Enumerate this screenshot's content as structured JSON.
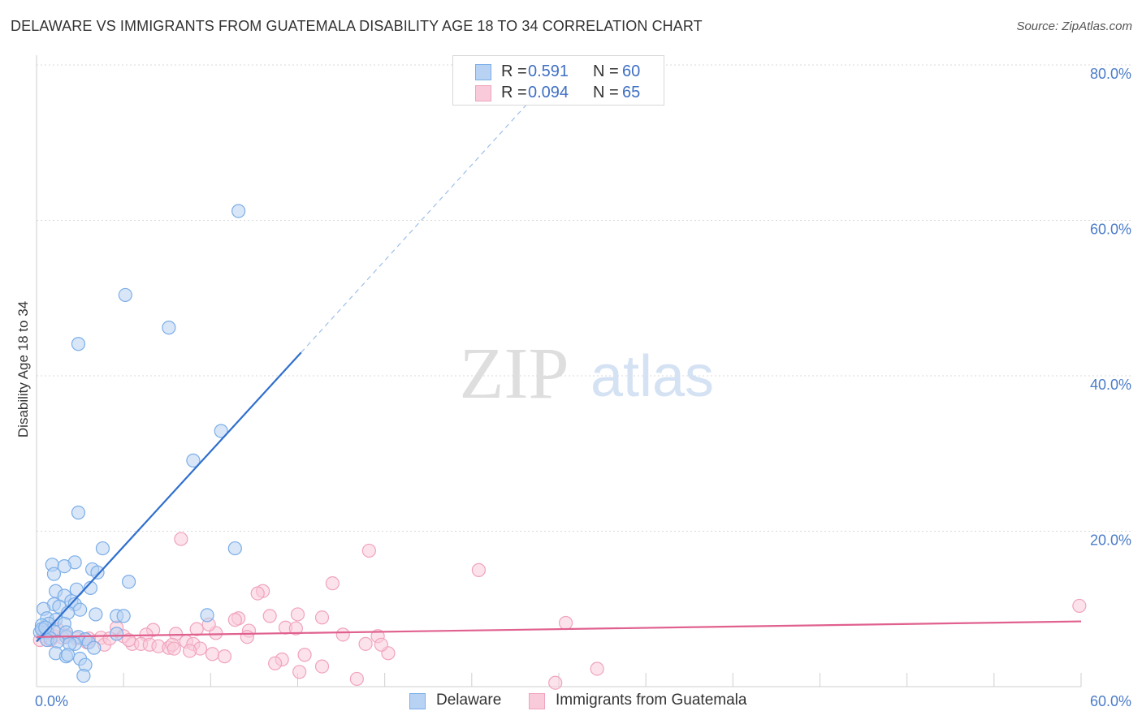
{
  "header": {
    "title": "DELAWARE VS IMMIGRANTS FROM GUATEMALA DISABILITY AGE 18 TO 34 CORRELATION CHART",
    "source": "Source: ZipAtlas.com"
  },
  "watermark": {
    "zip": "ZIP",
    "atlas": "atlas"
  },
  "legend_top": [
    {
      "r_label": "R =",
      "r_value": "0.591",
      "n_label": "N =",
      "n_value": "60"
    },
    {
      "r_label": "R =",
      "r_value": "0.094",
      "n_label": "N =",
      "n_value": "65"
    }
  ],
  "legend_bottom": [
    "Delaware",
    "Immigrants from Guatemala"
  ],
  "chart_data": {
    "type": "scatter",
    "title": "DELAWARE VS IMMIGRANTS FROM GUATEMALA DISABILITY AGE 18 TO 34 CORRELATION CHART",
    "xlabel": "",
    "ylabel": "Disability Age 18 to 34",
    "xlim": [
      0,
      60
    ],
    "ylim": [
      0,
      80
    ],
    "x_tick_labels": [
      {
        "value": 0,
        "label": "0.0%"
      },
      {
        "value": 60,
        "label": "60.0%"
      }
    ],
    "y_tick_labels": [
      {
        "value": 80,
        "label": "80.0%"
      },
      {
        "value": 60,
        "label": "60.0%"
      },
      {
        "value": 40,
        "label": "40.0%"
      },
      {
        "value": 20,
        "label": "20.0%"
      }
    ],
    "grid": true,
    "legend_position": "bottom",
    "series": [
      {
        "name": "Delaware",
        "color": "#7baee8",
        "fill": "#b8d2f3",
        "line_color": "#2f6fce",
        "R": 0.591,
        "N": 60,
        "trendline": {
          "x0": 0,
          "y0": 5.8,
          "x1": 15.2,
          "y1": 43.0,
          "dashed_to_x": 29.0,
          "dashed_to_y": 77.0
        },
        "points": [
          [
            11.6,
            61.2
          ],
          [
            5.1,
            50.4
          ],
          [
            7.6,
            46.2
          ],
          [
            2.4,
            44.1
          ],
          [
            10.6,
            32.9
          ],
          [
            9.0,
            29.1
          ],
          [
            2.4,
            22.4
          ],
          [
            3.8,
            17.8
          ],
          [
            11.4,
            17.8
          ],
          [
            0.9,
            15.7
          ],
          [
            2.2,
            16.0
          ],
          [
            1.6,
            15.5
          ],
          [
            3.2,
            15.1
          ],
          [
            3.5,
            14.7
          ],
          [
            1.0,
            14.5
          ],
          [
            5.3,
            13.5
          ],
          [
            3.1,
            12.7
          ],
          [
            2.3,
            12.5
          ],
          [
            1.1,
            12.3
          ],
          [
            1.6,
            11.7
          ],
          [
            2.0,
            11.0
          ],
          [
            1.0,
            10.6
          ],
          [
            2.2,
            10.6
          ],
          [
            0.4,
            10.0
          ],
          [
            2.5,
            9.9
          ],
          [
            1.3,
            10.3
          ],
          [
            1.8,
            9.5
          ],
          [
            3.4,
            9.3
          ],
          [
            4.6,
            9.1
          ],
          [
            5.0,
            9.1
          ],
          [
            9.8,
            9.2
          ],
          [
            0.6,
            8.8
          ],
          [
            1.1,
            8.6
          ],
          [
            0.7,
            8.1
          ],
          [
            1.6,
            8.1
          ],
          [
            0.3,
            7.9
          ],
          [
            0.4,
            7.3
          ],
          [
            0.2,
            7.0
          ],
          [
            0.6,
            7.0
          ],
          [
            1.0,
            7.1
          ],
          [
            1.7,
            6.4
          ],
          [
            1.7,
            7.0
          ],
          [
            2.4,
            6.4
          ],
          [
            0.8,
            6.2
          ],
          [
            2.8,
            6.1
          ],
          [
            0.6,
            6.0
          ],
          [
            1.2,
            5.8
          ],
          [
            3.0,
            5.7
          ],
          [
            2.2,
            5.5
          ],
          [
            3.3,
            5.0
          ],
          [
            1.9,
            5.5
          ],
          [
            4.6,
            6.8
          ],
          [
            1.1,
            4.3
          ],
          [
            1.7,
            3.9
          ],
          [
            1.8,
            4.1
          ],
          [
            2.5,
            3.6
          ],
          [
            2.8,
            2.8
          ],
          [
            2.7,
            1.4
          ],
          [
            0.3,
            7.4
          ],
          [
            0.5,
            7.6
          ]
        ]
      },
      {
        "name": "Immigrants from Guatemala",
        "color": "#f0a3bd",
        "fill": "#f9cad9",
        "line_color": "#e0608e",
        "R": 0.094,
        "N": 65,
        "trendline": {
          "x0": 0,
          "y0": 6.4,
          "x1": 60,
          "y1": 8.4
        },
        "points": [
          [
            8.3,
            19.0
          ],
          [
            19.1,
            17.5
          ],
          [
            25.4,
            15.0
          ],
          [
            17.0,
            13.3
          ],
          [
            13.0,
            12.3
          ],
          [
            12.7,
            12.0
          ],
          [
            59.9,
            10.4
          ],
          [
            15.0,
            9.3
          ],
          [
            11.6,
            8.8
          ],
          [
            13.4,
            9.1
          ],
          [
            16.4,
            8.9
          ],
          [
            11.4,
            8.6
          ],
          [
            30.4,
            8.2
          ],
          [
            14.3,
            7.6
          ],
          [
            9.2,
            7.4
          ],
          [
            6.7,
            7.3
          ],
          [
            12.2,
            7.2
          ],
          [
            14.9,
            7.5
          ],
          [
            10.3,
            6.9
          ],
          [
            8.0,
            6.8
          ],
          [
            6.3,
            6.7
          ],
          [
            4.6,
            7.6
          ],
          [
            5.0,
            6.5
          ],
          [
            3.7,
            6.3
          ],
          [
            3.0,
            6.2
          ],
          [
            2.3,
            6.2
          ],
          [
            1.7,
            6.6
          ],
          [
            1.0,
            6.5
          ],
          [
            0.4,
            6.5
          ],
          [
            0.2,
            6.0
          ],
          [
            0.8,
            6.0
          ],
          [
            17.6,
            6.7
          ],
          [
            19.6,
            6.5
          ],
          [
            5.5,
            5.5
          ],
          [
            6.0,
            5.5
          ],
          [
            6.5,
            5.4
          ],
          [
            7.0,
            5.2
          ],
          [
            7.6,
            5.0
          ],
          [
            8.6,
            5.8
          ],
          [
            9.0,
            5.5
          ],
          [
            9.4,
            4.9
          ],
          [
            10.1,
            4.2
          ],
          [
            10.8,
            3.9
          ],
          [
            7.8,
            5.4
          ],
          [
            3.9,
            5.4
          ],
          [
            2.9,
            5.7
          ],
          [
            1.5,
            6.3
          ],
          [
            4.2,
            6.2
          ],
          [
            14.1,
            3.5
          ],
          [
            15.4,
            4.1
          ],
          [
            13.7,
            3.0
          ],
          [
            15.1,
            1.9
          ],
          [
            16.4,
            2.6
          ],
          [
            20.2,
            4.3
          ],
          [
            19.8,
            5.4
          ],
          [
            18.9,
            5.5
          ],
          [
            18.4,
            1.0
          ],
          [
            29.8,
            0.5
          ],
          [
            32.2,
            2.3
          ],
          [
            9.9,
            8.0
          ],
          [
            7.9,
            4.9
          ],
          [
            5.3,
            6.0
          ],
          [
            12.1,
            6.4
          ],
          [
            8.8,
            4.6
          ],
          [
            1.2,
            7.4
          ]
        ]
      }
    ]
  }
}
